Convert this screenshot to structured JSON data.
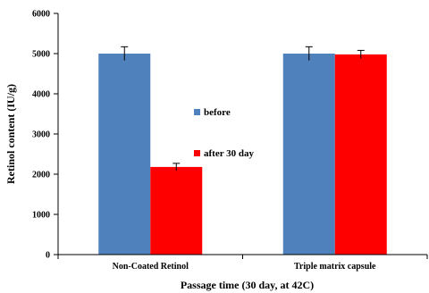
{
  "chart_data": {
    "type": "bar",
    "title": "",
    "xlabel": "Passage time (30 day, at 42C)",
    "ylabel": "Retinol content (IU/g)",
    "ylim": [
      0,
      6000
    ],
    "yticks": [
      "0",
      "1000",
      "2000",
      "3000",
      "4000",
      "5000",
      "6000"
    ],
    "categories": [
      "Non-Coated Retinol",
      "Triple matrix capsule"
    ],
    "series": [
      {
        "name": "before",
        "color": "#4F81BD",
        "values": [
          5000,
          5000
        ],
        "errors": [
          170,
          170
        ]
      },
      {
        "name": "after 30 day",
        "color": "#FF0000",
        "values": [
          2180,
          4980
        ],
        "errors": [
          90,
          100
        ]
      }
    ],
    "grid": false,
    "legend_position": "center"
  }
}
